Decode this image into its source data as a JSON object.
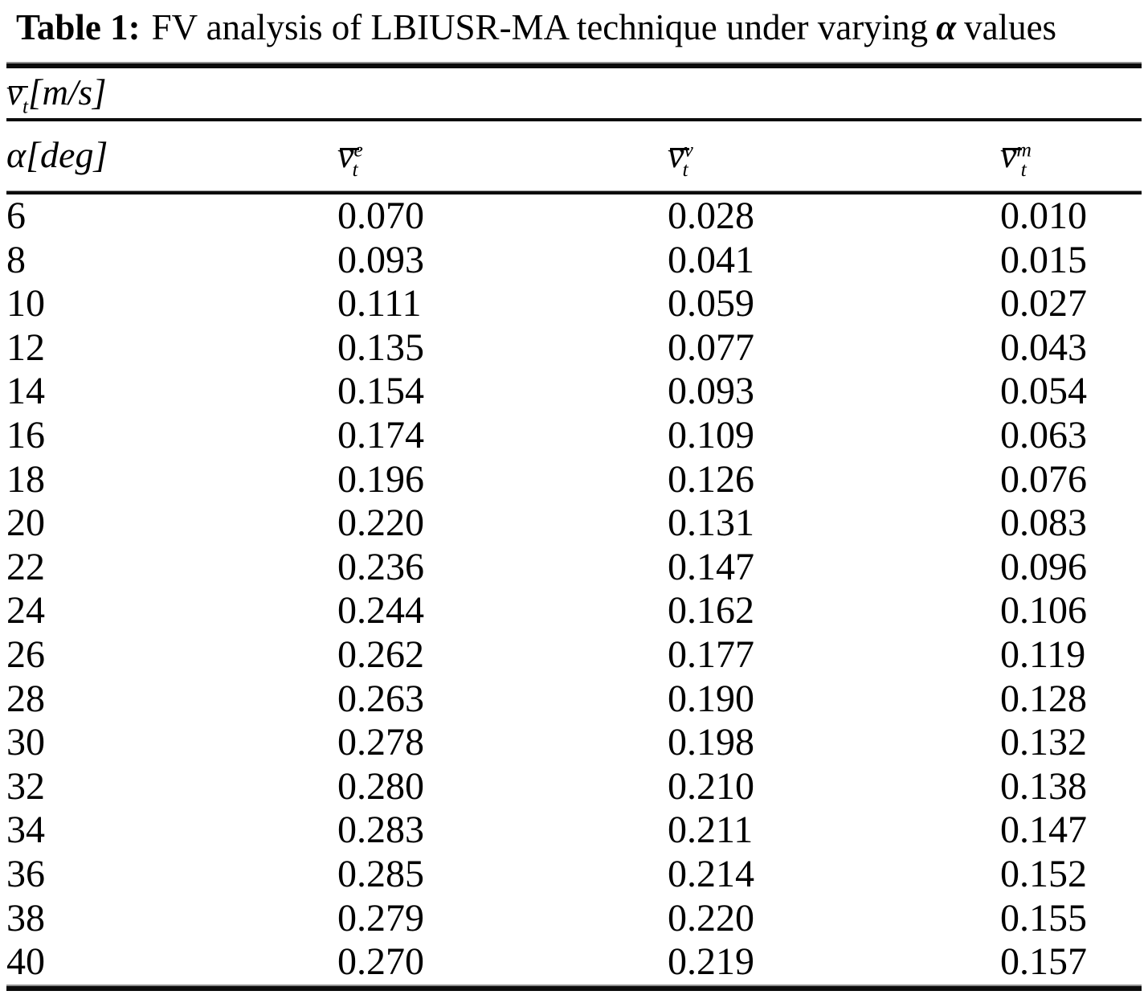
{
  "caption": {
    "label": "Table 1:",
    "text_before_alpha": "FV analysis of LBIUSR-MA technique under varying",
    "alpha_symbol": "α",
    "text_after_alpha": "values"
  },
  "table": {
    "unit_header": {
      "base": "v",
      "sub": "t",
      "unit": "[m/s]"
    },
    "columns": [
      {
        "base": "α",
        "unit": "[deg]"
      },
      {
        "base": "v",
        "sup": "e",
        "sub": "t"
      },
      {
        "base": "v",
        "sup": "v",
        "sub": "t"
      },
      {
        "base": "v",
        "sup": "m",
        "sub": "t"
      }
    ],
    "rows": [
      [
        "6",
        "0.070",
        "0.028",
        "0.010"
      ],
      [
        "8",
        "0.093",
        "0.041",
        "0.015"
      ],
      [
        "10",
        "0.111",
        "0.059",
        "0.027"
      ],
      [
        "12",
        "0.135",
        "0.077",
        "0.043"
      ],
      [
        "14",
        "0.154",
        "0.093",
        "0.054"
      ],
      [
        "16",
        "0.174",
        "0.109",
        "0.063"
      ],
      [
        "18",
        "0.196",
        "0.126",
        "0.076"
      ],
      [
        "20",
        "0.220",
        "0.131",
        "0.083"
      ],
      [
        "22",
        "0.236",
        "0.147",
        "0.096"
      ],
      [
        "24",
        "0.244",
        "0.162",
        "0.106"
      ],
      [
        "26",
        "0.262",
        "0.177",
        "0.119"
      ],
      [
        "28",
        "0.263",
        "0.190",
        "0.128"
      ],
      [
        "30",
        "0.278",
        "0.198",
        "0.132"
      ],
      [
        "32",
        "0.280",
        "0.210",
        "0.138"
      ],
      [
        "34",
        "0.283",
        "0.211",
        "0.147"
      ],
      [
        "36",
        "0.285",
        "0.214",
        "0.152"
      ],
      [
        "38",
        "0.279",
        "0.220",
        "0.155"
      ],
      [
        "40",
        "0.270",
        "0.219",
        "0.157"
      ]
    ]
  },
  "colors": {
    "text": "#000000",
    "background": "#ffffff",
    "rule_dark": "#0b0b0b",
    "rule_shadow": "#8f8f8f"
  }
}
